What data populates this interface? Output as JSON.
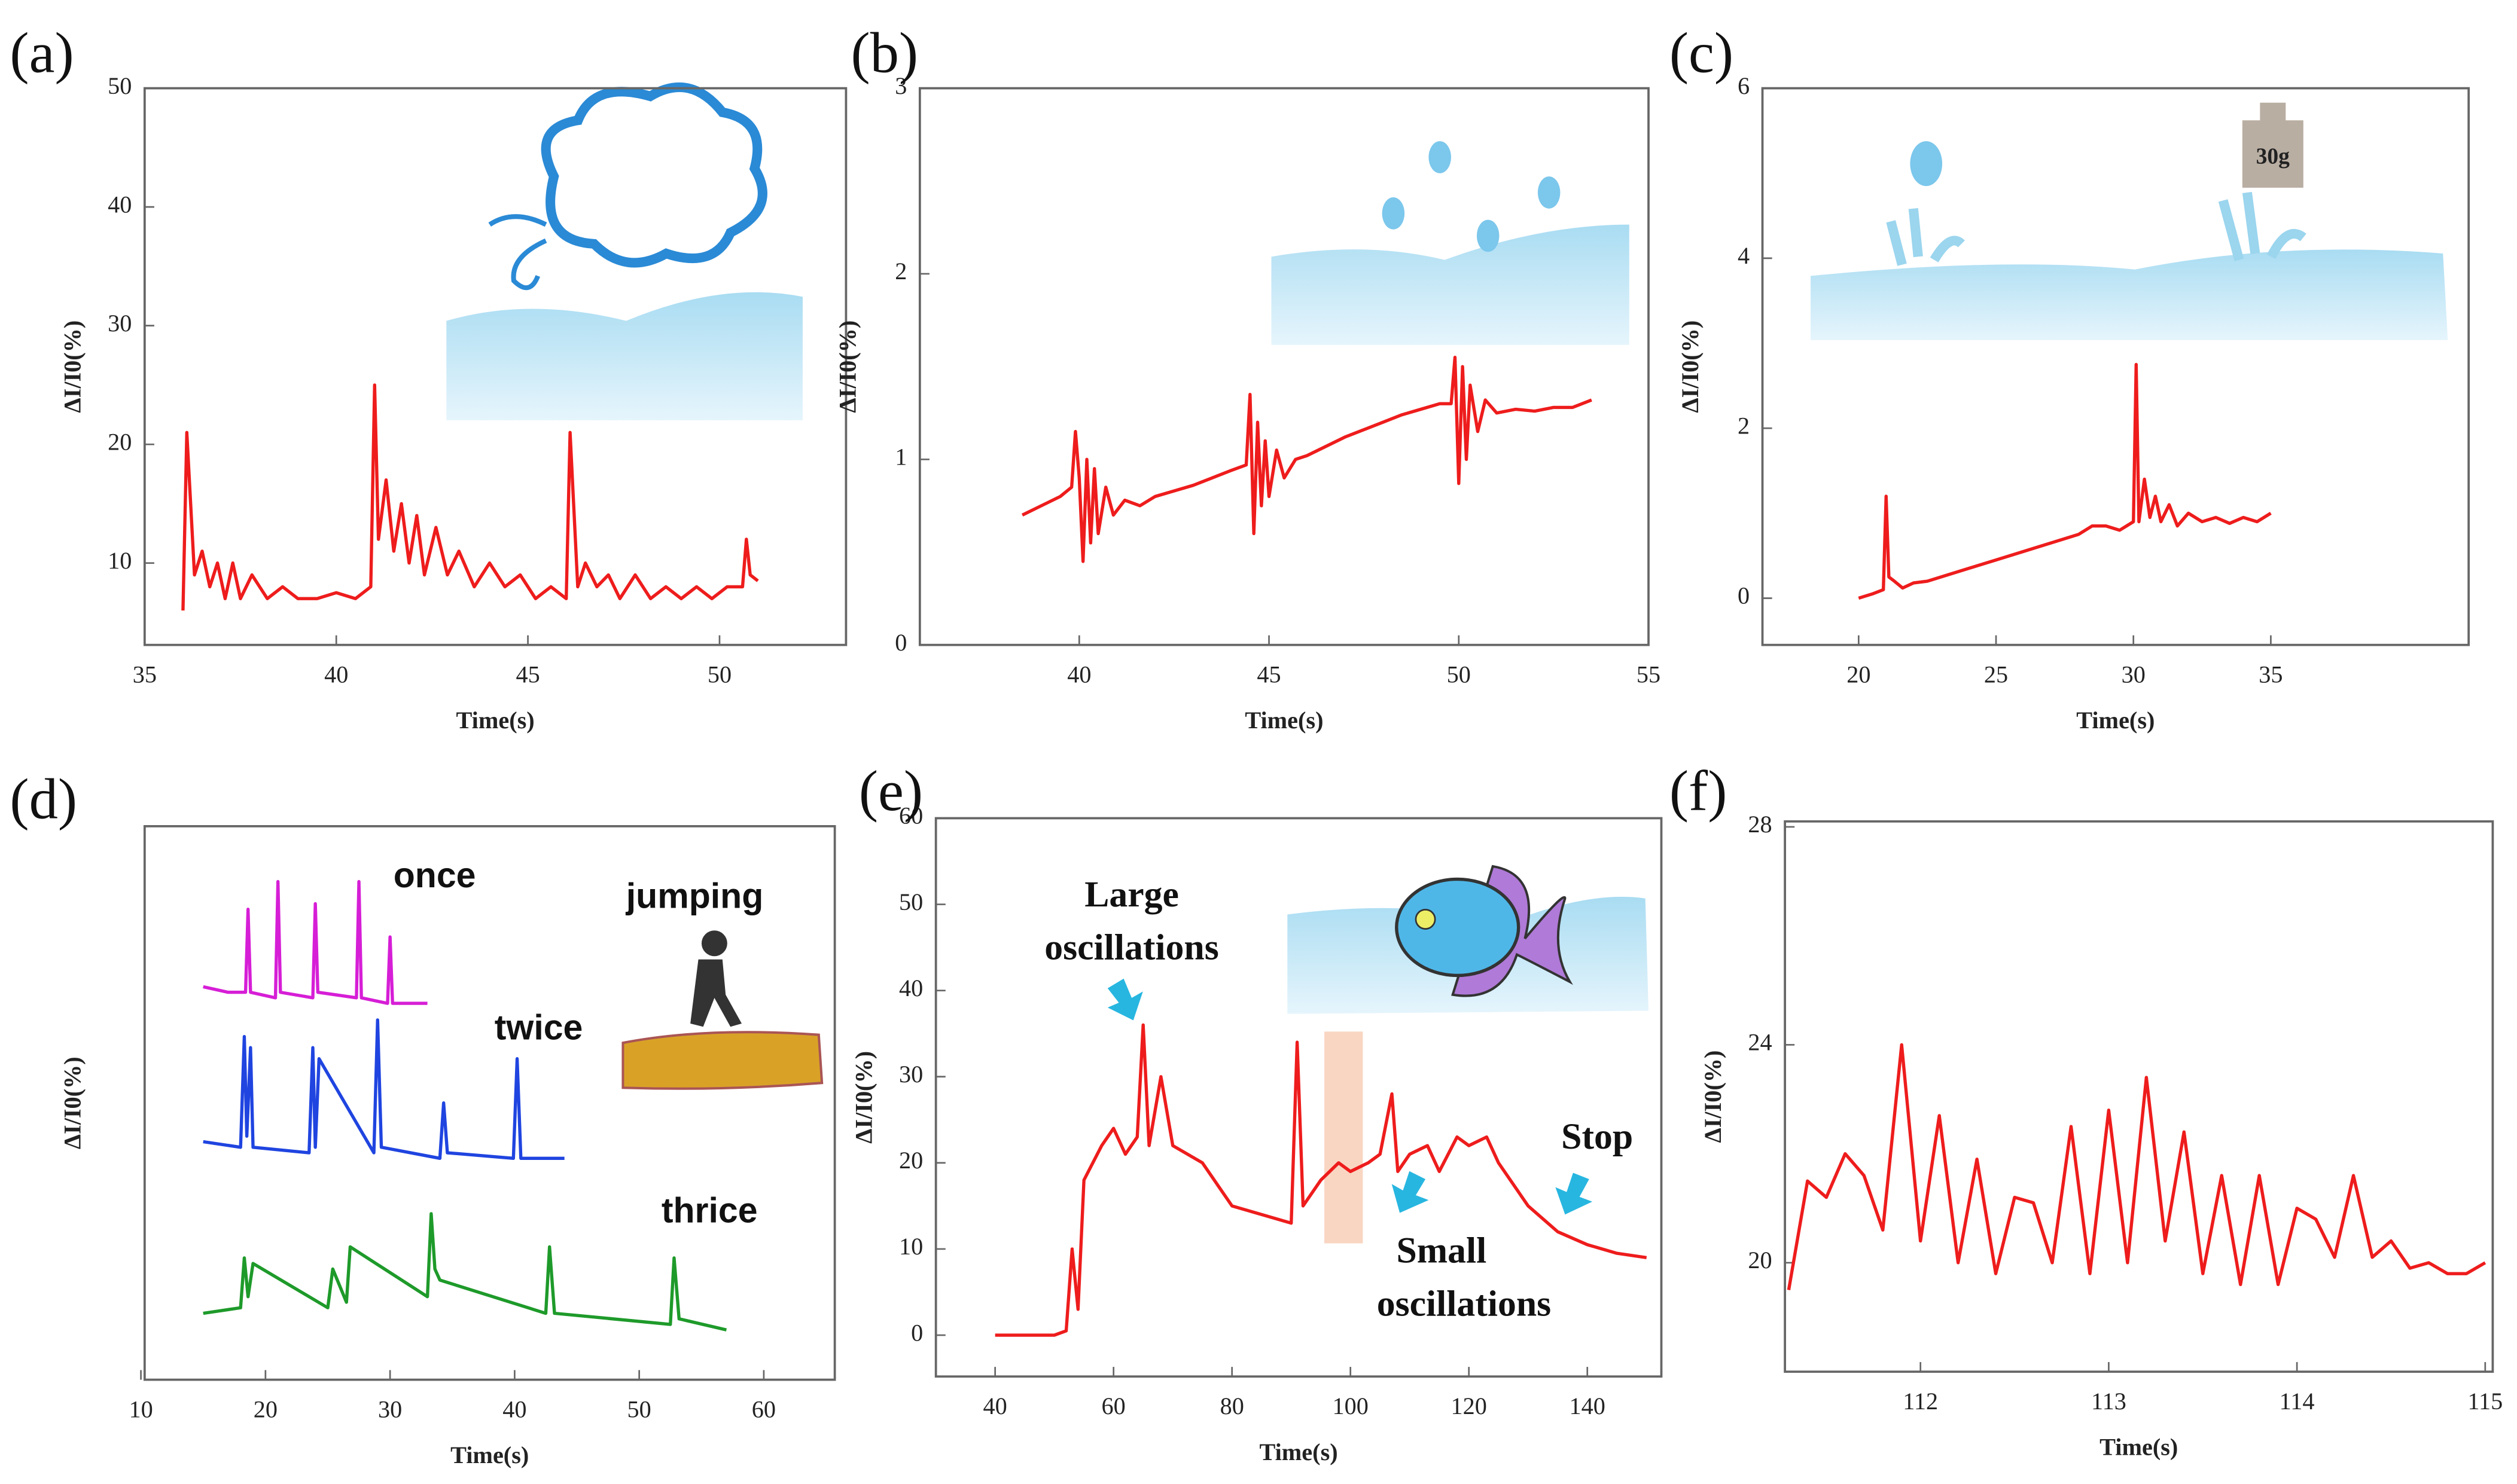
{
  "chart_data": [
    {
      "type": "line",
      "label": "(a)",
      "xlabel": "Time(s)",
      "ylabel": "ΔI/I0(%)",
      "color": "#ee1c1c",
      "xlim": [
        35,
        53.3
      ],
      "xticks": [
        35,
        40,
        45,
        50
      ],
      "ylim": [
        3.1,
        50
      ],
      "yticks": [
        10,
        20,
        30,
        40,
        50
      ],
      "x": [
        36,
        36.1,
        36.3,
        36.5,
        36.7,
        36.9,
        37.1,
        37.3,
        37.5,
        37.8,
        38.2,
        38.6,
        39,
        39.5,
        40,
        40.5,
        40.9,
        41,
        41.1,
        41.3,
        41.5,
        41.7,
        41.9,
        42.1,
        42.3,
        42.6,
        42.9,
        43.2,
        43.6,
        44,
        44.4,
        44.8,
        45.2,
        45.6,
        46,
        46.1,
        46.3,
        46.5,
        46.8,
        47.1,
        47.4,
        47.8,
        48.2,
        48.6,
        49,
        49.4,
        49.8,
        50.2,
        50.6,
        50.7,
        50.8,
        51
      ],
      "values": [
        6,
        21,
        9,
        11,
        8,
        10,
        7,
        10,
        7,
        9,
        7,
        8,
        7,
        7,
        7.5,
        7,
        8,
        25,
        12,
        17,
        11,
        15,
        10,
        14,
        9,
        13,
        9,
        11,
        8,
        10,
        8,
        9,
        7,
        8,
        7,
        21,
        8,
        10,
        8,
        9,
        7,
        9,
        7,
        8,
        7,
        8,
        7,
        8,
        8,
        12,
        9,
        8.5
      ]
    },
    {
      "type": "line",
      "label": "(b)",
      "xlabel": "Time(s)",
      "ylabel": "ΔI/I0(%)",
      "color": "#ee1c1c",
      "xlim": [
        35.8,
        55
      ],
      "xticks": [
        40,
        45,
        50,
        55
      ],
      "ylim": [
        0,
        3
      ],
      "yticks": [
        0,
        1,
        2,
        3
      ],
      "x": [
        38.5,
        39,
        39.5,
        39.8,
        39.9,
        40,
        40.1,
        40.2,
        40.3,
        40.4,
        40.5,
        40.7,
        40.9,
        41.2,
        41.6,
        42,
        42.5,
        43,
        43.5,
        44,
        44.4,
        44.5,
        44.6,
        44.7,
        44.8,
        44.9,
        45,
        45.2,
        45.4,
        45.7,
        46,
        46.5,
        47,
        47.5,
        48,
        48.5,
        49,
        49.5,
        49.8,
        49.9,
        50,
        50.1,
        50.2,
        50.3,
        50.5,
        50.7,
        51,
        51.5,
        52,
        52.5,
        53,
        53.5
      ],
      "values": [
        0.7,
        0.75,
        0.8,
        0.85,
        1.15,
        0.9,
        0.45,
        1.0,
        0.55,
        0.95,
        0.6,
        0.85,
        0.7,
        0.78,
        0.75,
        0.8,
        0.83,
        0.86,
        0.9,
        0.94,
        0.97,
        1.35,
        0.6,
        1.2,
        0.75,
        1.1,
        0.8,
        1.05,
        0.9,
        1.0,
        1.02,
        1.07,
        1.12,
        1.16,
        1.2,
        1.24,
        1.27,
        1.3,
        1.3,
        1.55,
        0.87,
        1.5,
        1.0,
        1.4,
        1.15,
        1.32,
        1.25,
        1.27,
        1.26,
        1.28,
        1.28,
        1.32
      ]
    },
    {
      "type": "line",
      "label": "(c)",
      "xlabel": "Time(s)",
      "ylabel": "ΔI/I0(%)",
      "color": "#ee1c1c",
      "annotations": [
        "30g"
      ],
      "xlim": [
        16.5,
        42.2
      ],
      "xticks": [
        20,
        25,
        30,
        35
      ],
      "ylim": [
        -0.55,
        6
      ],
      "yticks": [
        0,
        2,
        4,
        6
      ],
      "x": [
        20,
        20.5,
        20.9,
        21,
        21.1,
        21.3,
        21.6,
        22,
        22.5,
        23,
        24,
        25,
        26,
        27,
        28,
        28.5,
        29,
        29.5,
        30,
        30.1,
        30.2,
        30.4,
        30.6,
        30.8,
        31,
        31.3,
        31.6,
        32,
        32.5,
        33,
        33.5,
        34,
        34.5,
        35
      ],
      "values": [
        0,
        0.05,
        0.1,
        1.2,
        0.25,
        0.2,
        0.12,
        0.18,
        0.2,
        0.25,
        0.35,
        0.45,
        0.55,
        0.65,
        0.75,
        0.85,
        0.85,
        0.8,
        0.9,
        2.75,
        0.9,
        1.4,
        0.95,
        1.2,
        0.9,
        1.1,
        0.85,
        1.0,
        0.9,
        0.95,
        0.88,
        0.95,
        0.9,
        1.0
      ]
    },
    {
      "type": "line",
      "label": "(d)",
      "xlabel": "Time(s)",
      "ylabel": "ΔI/I0(%)",
      "annotations": [
        "jumping"
      ],
      "xlim": [
        10.3,
        65.7
      ],
      "xticks": [
        10,
        20,
        30,
        40,
        50,
        60
      ],
      "ylim": [
        0,
        100
      ],
      "series": [
        {
          "name": "once",
          "color": "#d61ed6",
          "x": [
            15,
            17,
            18.4,
            18.6,
            18.8,
            20.8,
            21,
            21.2,
            23.8,
            24,
            24.2,
            27.3,
            27.5,
            27.7,
            29.8,
            30,
            30.2,
            33
          ],
          "values": [
            71,
            70,
            70,
            85,
            70,
            69,
            90,
            70,
            69,
            86,
            70,
            69,
            90,
            69,
            68,
            80,
            68,
            68
          ]
        },
        {
          "name": "twice",
          "color": "#1f44e0",
          "x": [
            15,
            18,
            18.3,
            18.5,
            18.8,
            19,
            23.5,
            23.8,
            24,
            24.3,
            28.7,
            29,
            29.3,
            34,
            34.3,
            34.6,
            39.9,
            40.2,
            40.5,
            44
          ],
          "values": [
            43,
            42,
            62,
            44,
            60,
            42,
            41,
            60,
            42,
            58,
            41,
            65,
            42,
            40,
            50,
            41,
            40,
            58,
            40,
            40
          ]
        },
        {
          "name": "thrice",
          "color": "#1e9a2a",
          "x": [
            15,
            18,
            18.3,
            18.6,
            19,
            25,
            25.4,
            26.5,
            26.8,
            33,
            33.3,
            33.6,
            34,
            42.5,
            42.8,
            43.2,
            52.5,
            52.8,
            53.2,
            57
          ],
          "values": [
            12,
            13,
            22,
            15,
            21,
            13,
            20,
            14,
            24,
            15,
            30,
            20,
            18,
            12,
            24,
            12,
            10,
            22,
            11,
            9
          ]
        }
      ]
    },
    {
      "type": "line",
      "label": "(e)",
      "xlabel": "Time(s)",
      "ylabel": "ΔI/I0(%)",
      "color": "#ee1c1c",
      "annotations": [
        "Large",
        "oscillations",
        "Small",
        "oscillations",
        "Stop"
      ],
      "xlim": [
        30,
        152.5
      ],
      "xticks": [
        40,
        60,
        80,
        100,
        120,
        140
      ],
      "ylim": [
        -4.8,
        60
      ],
      "yticks": [
        0,
        10,
        20,
        30,
        40,
        50,
        60
      ],
      "x": [
        40,
        45,
        50,
        52,
        53,
        54,
        55,
        58,
        60,
        62,
        64,
        65,
        66,
        68,
        70,
        75,
        80,
        85,
        90,
        91,
        92,
        95,
        98,
        100,
        103,
        105,
        107,
        108,
        110,
        113,
        115,
        118,
        120,
        123,
        125,
        130,
        135,
        140,
        145,
        150
      ],
      "values": [
        0,
        0,
        0,
        0.5,
        10,
        3,
        18,
        22,
        24,
        21,
        23,
        36,
        22,
        30,
        22,
        20,
        15,
        14,
        13,
        34,
        15,
        18,
        20,
        19,
        20,
        21,
        28,
        19,
        21,
        22,
        19,
        23,
        22,
        23,
        20,
        15,
        12,
        10.5,
        9.5,
        9
      ]
    },
    {
      "type": "line",
      "label": "(f)",
      "xlabel": "Time(s)",
      "ylabel": "ΔI/I0(%)",
      "color": "#ee1c1c",
      "xlim": [
        111.28,
        115.04
      ],
      "xticks": [
        112,
        113,
        114,
        115
      ],
      "ylim": [
        18,
        28.1
      ],
      "yticks": [
        20,
        24,
        28
      ],
      "x": [
        111.3,
        111.4,
        111.5,
        111.6,
        111.7,
        111.8,
        111.9,
        112,
        112.1,
        112.2,
        112.3,
        112.4,
        112.5,
        112.6,
        112.7,
        112.8,
        112.9,
        113,
        113.1,
        113.2,
        113.3,
        113.4,
        113.5,
        113.6,
        113.7,
        113.8,
        113.9,
        114,
        114.1,
        114.2,
        114.3,
        114.4,
        114.5,
        114.6,
        114.7,
        114.8,
        114.9,
        115
      ],
      "values": [
        19.5,
        21.5,
        21.2,
        22,
        21.6,
        20.6,
        24,
        20.4,
        22.7,
        20,
        21.9,
        19.8,
        21.2,
        21.1,
        20,
        22.5,
        19.8,
        22.8,
        20,
        23.4,
        20.4,
        22.4,
        19.8,
        21.6,
        19.6,
        21.6,
        19.6,
        21,
        20.8,
        20.1,
        21.6,
        20.1,
        20.4,
        19.9,
        20,
        19.8,
        19.8,
        20
      ]
    }
  ]
}
